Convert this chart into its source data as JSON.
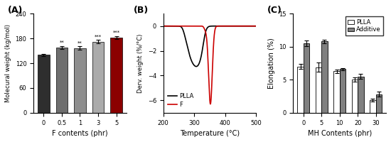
{
  "panelA": {
    "title": "(A)",
    "categories": [
      "0",
      "0.5",
      "1",
      "3",
      "5"
    ],
    "values": [
      140,
      158,
      157,
      172,
      182
    ],
    "errors": [
      3,
      4,
      4,
      4,
      4
    ],
    "bar_colors": [
      "#2e2e2e",
      "#6e6e6e",
      "#8e8e8e",
      "#ababab",
      "#8b0000"
    ],
    "stars": [
      "",
      "**",
      "**",
      "***",
      "***"
    ],
    "xlabel": "F contents (phr)",
    "ylabel": "Molecural weight (kg/mol)",
    "ylim": [
      0,
      240
    ],
    "yticks": [
      0,
      60,
      120,
      180,
      240
    ]
  },
  "panelB": {
    "title": "(B)",
    "xlabel": "Temperature (°C)",
    "ylabel": "Derv. weight (%/°C)",
    "xlim": [
      200,
      500
    ],
    "ylim": [
      -7,
      1
    ],
    "yticks": [
      -6,
      -4,
      -2,
      0
    ],
    "xticks": [
      200,
      300,
      400,
      500
    ],
    "plla_color": "#000000",
    "f_color": "#cc0000"
  },
  "panelC": {
    "title": "(C)",
    "categories": [
      "0",
      "5",
      "10",
      "20",
      "30"
    ],
    "plla_values": [
      7.0,
      6.9,
      6.3,
      5.0,
      1.9
    ],
    "plla_errors": [
      0.35,
      0.7,
      0.25,
      0.3,
      0.2
    ],
    "additive_values": [
      10.5,
      10.8,
      6.6,
      5.5,
      2.8
    ],
    "additive_errors": [
      0.4,
      0.3,
      0.2,
      0.4,
      0.35
    ],
    "plla_color": "#ffffff",
    "additive_color": "#808080",
    "xlabel": "MH Contents (phr)",
    "ylabel": "Elongation (%)",
    "ylim": [
      0,
      15
    ],
    "yticks": [
      0,
      5,
      10,
      15
    ]
  }
}
